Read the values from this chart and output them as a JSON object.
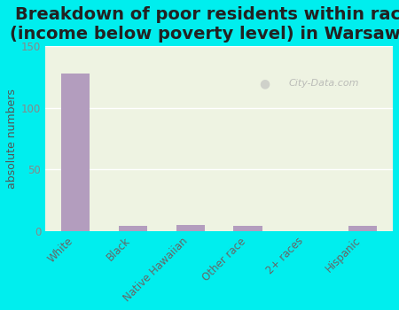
{
  "title": "Breakdown of poor residents within races\n(income below poverty level) in Warsaw, IL",
  "categories": [
    "White",
    "Black",
    "Native Hawaiian",
    "Other race",
    "2+ races",
    "Hispanic"
  ],
  "values": [
    128,
    4,
    5,
    4,
    0,
    4
  ],
  "bar_color": "#b39dbe",
  "ylabel": "absolute numbers",
  "ylim": [
    0,
    150
  ],
  "yticks": [
    0,
    50,
    100,
    150
  ],
  "plot_bg_color": "#eef3e2",
  "outer_bg": "#00eeee",
  "title_fontsize": 14,
  "axis_label_fontsize": 9,
  "tick_fontsize": 8.5,
  "ytick_color": "#888888",
  "xtick_color": "#666666",
  "watermark": "City-Data.com",
  "title_color": "#222222",
  "ylabel_color": "#555555"
}
